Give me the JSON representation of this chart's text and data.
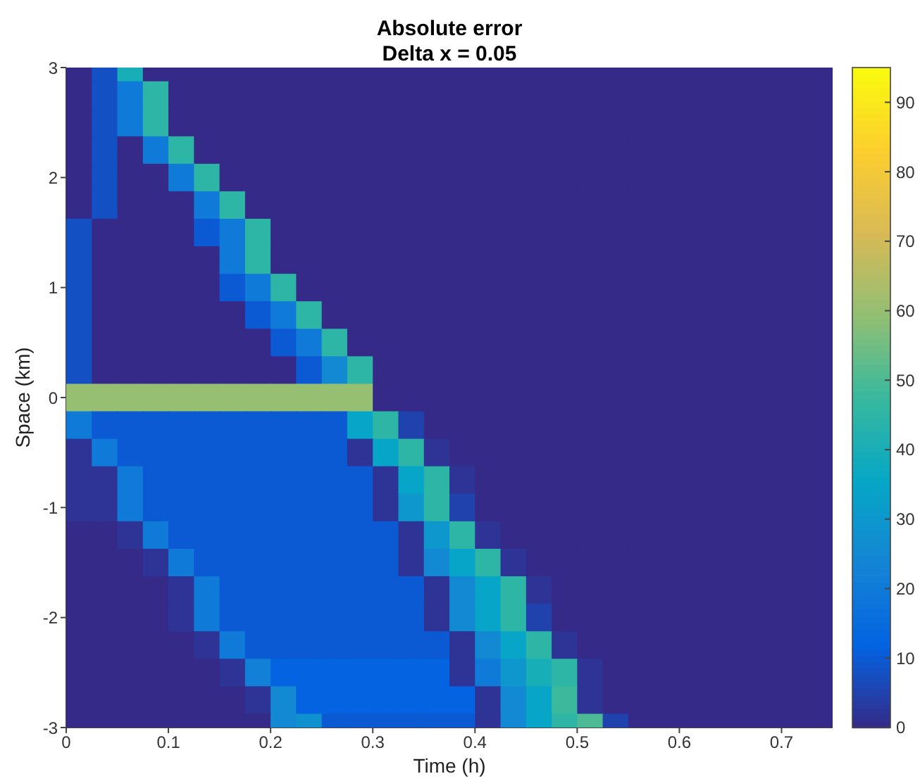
{
  "chart_data": {
    "type": "heatmap",
    "title": "Absolute error",
    "subtitle": "Delta x = 0.05",
    "xlabel": "Time (h)",
    "ylabel": "Space (km)",
    "x": [
      0.0125,
      0.0375,
      0.0625,
      0.0875,
      0.1125,
      0.1375,
      0.1625,
      0.1875,
      0.2125,
      0.2375,
      0.2625,
      0.2875,
      0.3125,
      0.3375,
      0.3625,
      0.3875,
      0.4125,
      0.4375,
      0.4625,
      0.4875,
      0.5125,
      0.5375,
      0.5625,
      0.5875,
      0.6125,
      0.6375,
      0.6625,
      0.6875,
      0.7125,
      0.7375
    ],
    "y": [
      3,
      2.75,
      2.5,
      2.25,
      2,
      1.75,
      1.5,
      1.25,
      1,
      0.75,
      0.5,
      0.25,
      0,
      -0.25,
      -0.5,
      -0.75,
      -1,
      -1.25,
      -1.5,
      -1.75,
      -2,
      -2.25,
      -2.5,
      -2.75,
      -3
    ],
    "cells": [
      [
        0,
        8,
        40,
        0,
        0,
        0,
        0,
        0,
        0,
        0,
        0,
        0,
        0,
        0,
        0,
        0,
        0,
        0,
        0,
        0,
        0,
        0,
        0,
        0,
        0,
        0,
        0,
        0,
        0,
        0
      ],
      [
        0,
        8,
        20,
        45,
        0,
        0,
        0,
        0,
        0,
        0,
        0,
        0,
        0,
        0,
        0,
        0,
        0,
        0,
        0,
        0,
        0,
        0,
        0,
        0,
        0,
        0,
        0,
        0,
        0,
        0
      ],
      [
        0,
        8,
        20,
        45,
        0,
        0,
        0,
        0,
        0,
        0,
        0,
        0,
        0,
        0,
        0,
        0,
        0,
        0,
        0,
        0,
        0,
        0,
        0,
        0,
        0,
        0,
        0,
        0,
        0,
        0
      ],
      [
        0,
        8,
        0,
        20,
        45,
        0,
        0,
        0,
        0,
        0,
        0,
        0,
        0,
        0,
        0,
        0,
        0,
        0,
        0,
        0,
        0,
        0,
        0,
        0,
        0,
        0,
        0,
        0,
        0,
        0
      ],
      [
        0,
        8,
        0,
        0,
        20,
        45,
        0,
        0,
        0,
        0,
        0,
        0,
        0,
        0,
        0,
        0,
        0,
        0,
        0,
        0,
        0,
        0,
        0,
        0,
        0,
        0,
        0,
        0,
        0,
        0
      ],
      [
        0,
        8,
        0,
        0,
        0,
        20,
        45,
        0,
        0,
        0,
        0,
        0,
        0,
        0,
        0,
        0,
        0,
        0,
        0,
        0,
        0,
        0,
        0,
        0,
        0,
        0,
        0,
        0,
        0,
        0
      ],
      [
        8,
        0,
        0,
        0,
        0,
        10,
        20,
        45,
        0,
        0,
        0,
        0,
        0,
        0,
        0,
        0,
        0,
        0,
        0,
        0,
        0,
        0,
        0,
        0,
        0,
        0,
        0,
        0,
        0,
        0
      ],
      [
        8,
        0,
        0,
        0,
        0,
        0,
        20,
        45,
        0,
        0,
        0,
        0,
        0,
        0,
        0,
        0,
        0,
        0,
        0,
        0,
        0,
        0,
        0,
        0,
        0,
        0,
        0,
        0,
        0,
        0
      ],
      [
        8,
        0,
        0,
        0,
        0,
        0,
        10,
        20,
        45,
        0,
        0,
        0,
        0,
        0,
        0,
        0,
        0,
        0,
        0,
        0,
        0,
        0,
        0,
        0,
        0,
        0,
        0,
        0,
        0,
        0
      ],
      [
        8,
        0,
        0,
        0,
        0,
        0,
        0,
        10,
        20,
        45,
        0,
        0,
        0,
        0,
        0,
        0,
        0,
        0,
        0,
        0,
        0,
        0,
        0,
        0,
        0,
        0,
        0,
        0,
        0,
        0
      ],
      [
        8,
        0,
        0,
        0,
        0,
        0,
        0,
        0,
        10,
        20,
        45,
        0,
        0,
        0,
        0,
        0,
        0,
        0,
        0,
        0,
        0,
        0,
        0,
        0,
        0,
        0,
        0,
        0,
        0,
        0
      ],
      [
        8,
        0,
        0,
        0,
        0,
        0,
        0,
        0,
        0,
        10,
        25,
        45,
        0,
        0,
        0,
        0,
        0,
        0,
        0,
        0,
        0,
        0,
        0,
        0,
        0,
        0,
        0,
        0,
        0,
        0
      ],
      [
        60,
        60,
        60,
        60,
        60,
        60,
        60,
        60,
        60,
        60,
        60,
        60,
        0,
        0,
        0,
        0,
        0,
        0,
        0,
        0,
        0,
        0,
        0,
        0,
        0,
        0,
        0,
        0,
        0,
        0
      ],
      [
        20,
        10,
        10,
        10,
        10,
        10,
        10,
        10,
        10,
        10,
        10,
        35,
        45,
        5,
        0,
        0,
        0,
        0,
        0,
        0,
        0,
        0,
        0,
        0,
        0,
        0,
        0,
        0,
        0,
        0
      ],
      [
        2,
        20,
        10,
        10,
        10,
        10,
        10,
        10,
        10,
        10,
        10,
        2,
        35,
        45,
        2,
        0,
        0,
        0,
        0,
        0,
        0,
        0,
        0,
        0,
        0,
        0,
        0,
        0,
        0,
        0
      ],
      [
        2,
        2,
        20,
        10,
        10,
        10,
        10,
        10,
        10,
        10,
        10,
        10,
        2,
        35,
        45,
        2,
        0,
        0,
        0,
        0,
        0,
        0,
        0,
        0,
        0,
        0,
        0,
        0,
        0,
        0
      ],
      [
        2,
        2,
        20,
        10,
        10,
        10,
        10,
        10,
        10,
        10,
        10,
        10,
        2,
        30,
        45,
        5,
        0,
        0,
        0,
        0,
        0,
        0,
        0,
        0,
        0,
        0,
        0,
        0,
        0,
        0
      ],
      [
        0,
        0,
        2,
        20,
        10,
        10,
        10,
        10,
        10,
        10,
        10,
        10,
        10,
        2,
        30,
        45,
        2,
        0,
        0,
        0,
        0,
        0,
        0,
        0,
        0,
        0,
        0,
        0,
        0,
        0
      ],
      [
        0,
        0,
        0,
        2,
        20,
        10,
        10,
        10,
        10,
        10,
        10,
        10,
        10,
        2,
        25,
        35,
        45,
        2,
        0,
        0,
        0,
        0,
        0,
        0,
        0,
        0,
        0,
        0,
        0,
        0
      ],
      [
        0,
        0,
        0,
        0,
        2,
        20,
        10,
        10,
        10,
        10,
        10,
        10,
        10,
        10,
        2,
        25,
        35,
        45,
        2,
        0,
        0,
        0,
        0,
        0,
        0,
        0,
        0,
        0,
        0,
        0
      ],
      [
        0,
        0,
        0,
        0,
        2,
        20,
        10,
        10,
        10,
        10,
        10,
        10,
        10,
        10,
        2,
        25,
        35,
        45,
        5,
        0,
        0,
        0,
        0,
        0,
        0,
        0,
        0,
        0,
        0,
        0
      ],
      [
        0,
        0,
        0,
        0,
        0,
        2,
        20,
        10,
        10,
        10,
        10,
        10,
        10,
        10,
        10,
        2,
        25,
        35,
        45,
        2,
        0,
        0,
        0,
        0,
        0,
        0,
        0,
        0,
        0,
        0
      ],
      [
        0,
        0,
        0,
        0,
        0,
        0,
        2,
        22,
        12,
        12,
        12,
        12,
        12,
        12,
        12,
        2,
        20,
        30,
        40,
        45,
        2,
        0,
        0,
        0,
        0,
        0,
        0,
        0,
        0,
        0
      ],
      [
        0,
        0,
        0,
        0,
        0,
        0,
        0,
        2,
        25,
        12,
        12,
        12,
        12,
        12,
        12,
        12,
        2,
        25,
        35,
        48,
        2,
        0,
        0,
        0,
        0,
        0,
        0,
        0,
        0,
        0
      ],
      [
        0,
        0,
        0,
        0,
        0,
        0,
        0,
        0,
        25,
        28,
        10,
        10,
        10,
        10,
        10,
        10,
        2,
        25,
        35,
        45,
        50,
        5,
        0,
        0,
        0,
        0,
        0,
        0,
        0,
        0
      ]
    ],
    "xlim": [
      0,
      0.75
    ],
    "ylim": [
      -3,
      3
    ],
    "xticks": [
      0,
      0.1,
      0.2,
      0.3,
      0.4,
      0.5,
      0.6,
      0.7
    ],
    "yticks": [
      -3,
      -2,
      -1,
      0,
      1,
      2,
      3
    ],
    "clim": [
      0,
      95
    ],
    "cticks": [
      0,
      10,
      20,
      30,
      40,
      50,
      60,
      70,
      80,
      90
    ]
  }
}
